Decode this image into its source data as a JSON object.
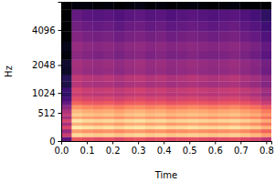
{
  "chart_data": {
    "type": "heatmap",
    "x_label": "Time",
    "y_label": "Hz",
    "xlim": [
      0,
      0.82
    ],
    "ylim": [
      0,
      6700
    ],
    "xticks": [
      {
        "value": 0,
        "label": "0.0"
      },
      0.1,
      0.2,
      0.3,
      0.4,
      0.5,
      0.6,
      0.7,
      0.8
    ],
    "yticks": [
      0,
      512,
      1024,
      2048,
      4096
    ],
    "zlim": [
      -80,
      0
    ],
    "x_edges": [
      0,
      0.041,
      0.082,
      0.123,
      0.164,
      0.205,
      0.246,
      0.287,
      0.328,
      0.369,
      0.41,
      0.451,
      0.492,
      0.533,
      0.574,
      0.615,
      0.656,
      0.697,
      0.738,
      0.779,
      0.82
    ],
    "y_edges": [
      0,
      64,
      128,
      192,
      256,
      320,
      384,
      448,
      512,
      600,
      700,
      800,
      920,
      1050,
      1200,
      1400,
      1650,
      1950,
      2300,
      2750,
      3300,
      4000,
      4800,
      5900,
      6700
    ],
    "values": [
      [
        -58,
        -28,
        -30,
        -31,
        -30,
        -32,
        -30,
        -29,
        -31,
        -30,
        -32,
        -31,
        -30,
        -31,
        -32,
        -31,
        -30,
        -32,
        -34,
        -38
      ],
      [
        -36,
        -6,
        -8,
        -9,
        -8,
        -10,
        -8,
        -7,
        -9,
        -8,
        -10,
        -9,
        -8,
        -9,
        -10,
        -9,
        -8,
        -10,
        -12,
        -16
      ],
      [
        -46,
        -16,
        -18,
        -19,
        -18,
        -20,
        -18,
        -17,
        -19,
        -18,
        -20,
        -19,
        -18,
        -19,
        -20,
        -19,
        -18,
        -20,
        -22,
        -26
      ],
      [
        -33,
        -3,
        -5,
        -6,
        -5,
        -7,
        -5,
        -4,
        -6,
        -5,
        -7,
        -6,
        -5,
        -6,
        -7,
        -6,
        -5,
        -7,
        -9,
        -13
      ],
      [
        -43,
        -13,
        -15,
        -16,
        -15,
        -17,
        -15,
        -14,
        -16,
        -15,
        -17,
        -16,
        -15,
        -16,
        -17,
        -16,
        -15,
        -17,
        -19,
        -23
      ],
      [
        -34,
        -4,
        -6,
        -7,
        -6,
        -8,
        -6,
        -5,
        -7,
        -6,
        -8,
        -7,
        -6,
        -7,
        -8,
        -7,
        -6,
        -8,
        -10,
        -14
      ],
      [
        -44,
        -14,
        -16,
        -17,
        -16,
        -18,
        -16,
        -15,
        -17,
        -16,
        -18,
        -17,
        -16,
        -17,
        -18,
        -17,
        -16,
        -18,
        -20,
        -24
      ],
      [
        -38,
        -8,
        -10,
        -11,
        -10,
        -12,
        -10,
        -9,
        -11,
        -10,
        -12,
        -11,
        -10,
        -11,
        -12,
        -11,
        -10,
        -12,
        -14,
        -18
      ],
      [
        -42,
        -12,
        -14,
        -15,
        -14,
        -16,
        -14,
        -13,
        -15,
        -14,
        -16,
        -15,
        -14,
        -15,
        -16,
        -15,
        -14,
        -16,
        -18,
        -22
      ],
      [
        -48,
        -18,
        -20,
        -21,
        -20,
        -22,
        -20,
        -19,
        -21,
        -20,
        -22,
        -21,
        -20,
        -21,
        -22,
        -21,
        -20,
        -22,
        -24,
        -28
      ],
      [
        -56,
        -26,
        -28,
        -29,
        -28,
        -30,
        -28,
        -27,
        -29,
        -28,
        -30,
        -29,
        -28,
        -29,
        -30,
        -29,
        -28,
        -30,
        -32,
        -36
      ],
      [
        -61,
        -31,
        -33,
        -34,
        -33,
        -35,
        -33,
        -32,
        -34,
        -33,
        -35,
        -34,
        -33,
        -34,
        -35,
        -34,
        -33,
        -35,
        -37,
        -41
      ],
      [
        -66,
        -36,
        -38,
        -39,
        -38,
        -40,
        -38,
        -37,
        -39,
        -38,
        -40,
        -39,
        -38,
        -39,
        -40,
        -39,
        -38,
        -40,
        -42,
        -46
      ],
      [
        -64,
        -34,
        -36,
        -37,
        -36,
        -38,
        -36,
        -35,
        -37,
        -36,
        -38,
        -37,
        -36,
        -37,
        -38,
        -37,
        -36,
        -38,
        -40,
        -44
      ],
      [
        -70,
        -40,
        -42,
        -43,
        -42,
        -44,
        -42,
        -41,
        -43,
        -42,
        -44,
        -43,
        -42,
        -43,
        -44,
        -43,
        -42,
        -44,
        -46,
        -50
      ],
      [
        -68,
        -38,
        -40,
        -41,
        -40,
        -42,
        -40,
        -39,
        -41,
        -40,
        -42,
        -41,
        -40,
        -41,
        -42,
        -41,
        -40,
        -42,
        -44,
        -48
      ],
      [
        -74,
        -44,
        -46,
        -47,
        -46,
        -48,
        -46,
        -45,
        -47,
        -46,
        -48,
        -47,
        -46,
        -47,
        -48,
        -47,
        -46,
        -48,
        -50,
        -54
      ],
      [
        -73,
        -43,
        -45,
        -46,
        -45,
        -47,
        -45,
        -44,
        -46,
        -45,
        -47,
        -46,
        -45,
        -46,
        -47,
        -46,
        -45,
        -47,
        -49,
        -53
      ],
      [
        -78,
        -48,
        -50,
        -51,
        -50,
        -52,
        -50,
        -49,
        -51,
        -50,
        -52,
        -51,
        -50,
        -51,
        -52,
        -51,
        -50,
        -52,
        -54,
        -58
      ],
      [
        -76,
        -46,
        -48,
        -49,
        -48,
        -50,
        -48,
        -47,
        -49,
        -48,
        -50,
        -49,
        -48,
        -49,
        -50,
        -49,
        -48,
        -50,
        -52,
        -56
      ],
      [
        -80,
        -50,
        -52,
        -53,
        -52,
        -54,
        -52,
        -51,
        -53,
        -52,
        -54,
        -53,
        -52,
        -53,
        -54,
        -53,
        -52,
        -54,
        -56,
        -60
      ],
      [
        -80,
        -53,
        -55,
        -56,
        -55,
        -57,
        -55,
        -54,
        -56,
        -55,
        -57,
        -56,
        -55,
        -56,
        -57,
        -56,
        -55,
        -57,
        -59,
        -63
      ],
      [
        -80,
        -56,
        -58,
        -59,
        -58,
        -60,
        -58,
        -57,
        -59,
        -58,
        -60,
        -59,
        -58,
        -59,
        -60,
        -59,
        -58,
        -60,
        -62,
        -66
      ],
      [
        -80,
        -78,
        -78,
        -79,
        -78,
        -80,
        -78,
        -77,
        -79,
        -78,
        -80,
        -79,
        -78,
        -79,
        -80,
        -79,
        -78,
        -80,
        -80,
        -80
      ]
    ]
  }
}
